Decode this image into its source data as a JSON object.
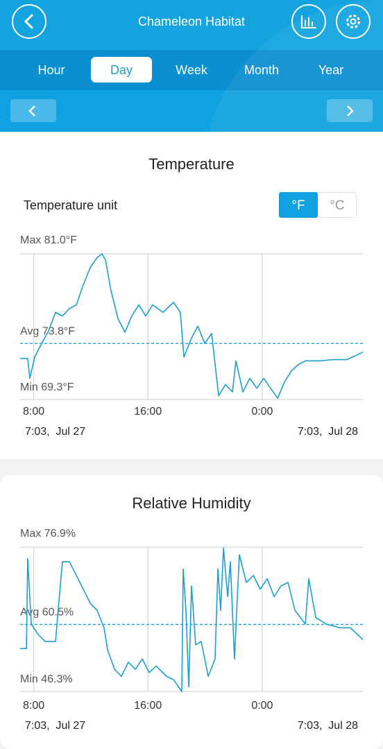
{
  "header": {
    "title": "Chameleon Habitat"
  },
  "tabs": [
    "Hour",
    "Day",
    "Week",
    "Month",
    "Year"
  ],
  "selected_tab": 1,
  "temperature_unit": {
    "label": "Temperature unit",
    "options": [
      "°F",
      "°C"
    ],
    "selected": 0
  },
  "chart_data": [
    {
      "type": "line",
      "title": "Temperature",
      "x": [
        0,
        0.53,
        0.68,
        1.02,
        1.51,
        1.99,
        2.48,
        2.96,
        3.45,
        3.94,
        4.42,
        4.91,
        5.39,
        5.73,
        5.98,
        6.37,
        6.85,
        7.34,
        7.82,
        8.31,
        8.79,
        9.28,
        10.01,
        10.74,
        11.22,
        11.47,
        11.95,
        12.44,
        12.93,
        13.41,
        13.9,
        14.38,
        14.87,
        15.11,
        15.6,
        16.08,
        16.57,
        17.06,
        17.54,
        18.03,
        18.51,
        19.0,
        19.48,
        19.97,
        20.94,
        21.91,
        22.89,
        24
      ],
      "series": [
        {
          "color": "#1a9fd3",
          "values": [
            72.6,
            72.6,
            71.0,
            72.7,
            73.8,
            74.8,
            76.3,
            76.0,
            76.6,
            76.9,
            78.5,
            79.9,
            80.7,
            81.0,
            80.5,
            78.0,
            75.8,
            74.7,
            76.0,
            76.9,
            76.0,
            76.9,
            76.3,
            77.1,
            76.3,
            72.7,
            74.1,
            75.2,
            73.8,
            74.6,
            69.6,
            70.5,
            69.9,
            72.4,
            69.9,
            71.0,
            70.2,
            71.0,
            70.2,
            69.4,
            70.7,
            71.6,
            72.1,
            72.4,
            72.4,
            72.5,
            72.5,
            73.1
          ]
        }
      ],
      "xlim": [
        0,
        24
      ],
      "xticks": [
        {
          "value": 0.95,
          "label": "8:00"
        },
        {
          "value": 8.95,
          "label": "16:00"
        },
        {
          "value": 16.95,
          "label": "0:00"
        }
      ],
      "ylim": [
        69.3,
        81.0
      ],
      "yticks": [
        {
          "value": 81.0,
          "label": "Max 81.0°F"
        },
        {
          "value": 73.8,
          "label": "Avg 73.8°F"
        },
        {
          "value": 69.3,
          "label": "Min 69.3°F"
        }
      ],
      "date_labels": [
        "7:03,  Jul 27",
        "7:03,  Jul 28"
      ]
    },
    {
      "type": "line",
      "title": "Relative Humidity",
      "x": [
        0,
        0.44,
        0.53,
        0.78,
        1.26,
        1.75,
        2.48,
        2.62,
        2.96,
        3.45,
        3.94,
        4.42,
        4.91,
        5.39,
        5.88,
        6.12,
        6.61,
        7.09,
        7.58,
        8.07,
        8.55,
        9.04,
        9.52,
        10.25,
        10.74,
        11.32,
        11.42,
        11.61,
        11.81,
        12.0,
        12.29,
        12.68,
        13.17,
        13.65,
        13.85,
        14.04,
        14.24,
        14.53,
        14.72,
        15.01,
        15.35,
        15.84,
        16.33,
        16.81,
        17.3,
        17.79,
        18.27,
        18.76,
        19.24,
        19.97,
        20.21,
        20.7,
        21.43,
        22.4,
        23.13,
        24
      ],
      "series": [
        {
          "color": "#1a9fd3",
          "values": [
            55.4,
            55.4,
            74.5,
            60.6,
            58.4,
            56.9,
            56.9,
            62.0,
            73.8,
            73.8,
            70.9,
            68.0,
            65.0,
            63.5,
            59.8,
            55.2,
            51.0,
            49.5,
            52.5,
            51.0,
            53.2,
            50.3,
            51.7,
            49.5,
            48.8,
            46.3,
            72.3,
            63.5,
            47.3,
            68.7,
            56.2,
            56.9,
            49.5,
            53.2,
            72.3,
            63.5,
            76.7,
            66.4,
            73.8,
            53.2,
            75.3,
            69.4,
            70.9,
            68.0,
            70.2,
            66.4,
            68.7,
            69.4,
            63.5,
            60.6,
            70.2,
            62.0,
            60.6,
            59.8,
            59.8,
            57.3
          ]
        }
      ],
      "xlim": [
        0,
        24
      ],
      "xticks": [
        {
          "value": 0.95,
          "label": "8:00"
        },
        {
          "value": 8.95,
          "label": "16:00"
        },
        {
          "value": 16.95,
          "label": "0:00"
        }
      ],
      "ylim": [
        46.3,
        76.9
      ],
      "yticks": [
        {
          "value": 76.9,
          "label": "Max 76.9%"
        },
        {
          "value": 60.5,
          "label": "Avg 60.5%"
        },
        {
          "value": 46.3,
          "label": "Min 46.3%"
        }
      ],
      "date_labels": [
        "7:03,  Jul 27",
        "7:03,  Jul 28"
      ]
    }
  ]
}
